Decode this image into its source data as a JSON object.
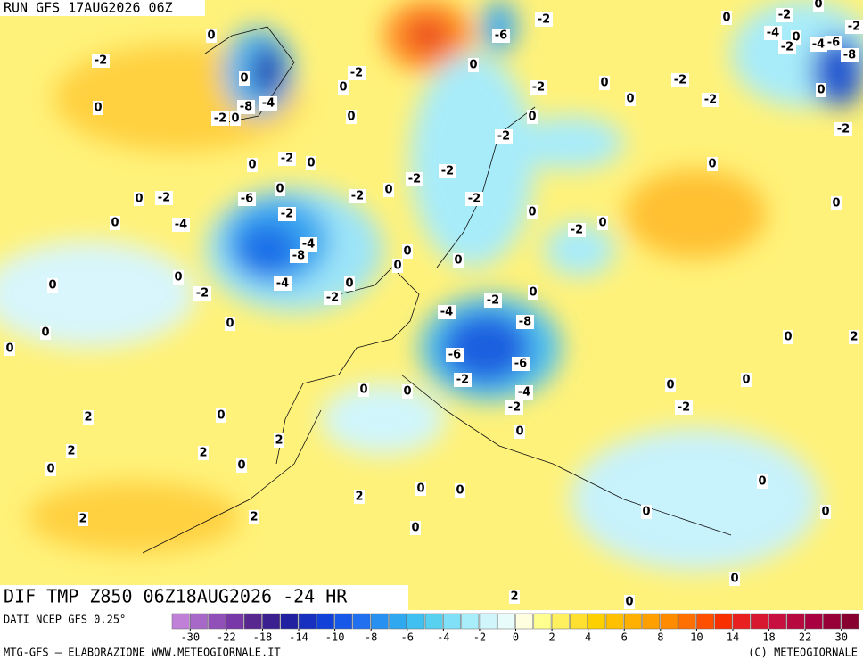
{
  "header": {
    "run": "RUN GFS 17AUG2026 06Z"
  },
  "map": {
    "title": "DIF TMP Z850 06Z18AUG2026 -24 HR",
    "contour_labels": [
      0,
      -2,
      0,
      0,
      -4,
      -8,
      -2,
      0,
      -2,
      0,
      0,
      -6,
      -2,
      0,
      -2,
      0,
      0,
      -2,
      -2,
      0,
      -2,
      -4,
      0,
      -2,
      -4,
      -6,
      -8,
      0,
      0,
      -2,
      -2,
      0,
      -2,
      -2,
      0,
      0,
      0,
      0,
      -2,
      0,
      -4,
      -6,
      -2,
      -2,
      0,
      -2,
      -2,
      -2,
      0,
      -2,
      0,
      0,
      0,
      -4,
      -8,
      -4,
      0,
      -2,
      -2,
      0,
      0,
      0,
      0,
      0,
      0,
      0,
      0,
      -2,
      0,
      -4,
      -8,
      -6,
      -2,
      -6,
      -4,
      -2,
      0,
      0,
      0,
      2,
      2,
      0,
      0,
      2,
      2,
      0,
      0,
      2,
      0,
      0,
      -2,
      0,
      2,
      0,
      0,
      2,
      2,
      0,
      0,
      0,
      0,
      0,
      2
    ]
  },
  "colorbar": {
    "ticks": [
      -30,
      -22,
      -18,
      -14,
      -10,
      -8,
      -6,
      -4,
      -2,
      0,
      2,
      4,
      6,
      8,
      10,
      14,
      18,
      22,
      30
    ],
    "colors": [
      "#c080d8",
      "#a868c8",
      "#9050b8",
      "#7838a8",
      "#582890",
      "#3c2090",
      "#2020a0",
      "#1830c0",
      "#1040d8",
      "#1858e8",
      "#2070f0",
      "#2890f0",
      "#30a8f0",
      "#40c0f0",
      "#58d0f0",
      "#80e0f8",
      "#a8eefa",
      "#d0f6fc",
      "#e8fcfc",
      "#ffffe0",
      "#ffff90",
      "#fff060",
      "#ffe030",
      "#ffd000",
      "#ffc000",
      "#ffb000",
      "#ffa000",
      "#ff8c00",
      "#ff7000",
      "#ff5000",
      "#f83000",
      "#e82020",
      "#d81830",
      "#c81040",
      "#b80840",
      "#a80040",
      "#980038",
      "#880030"
    ]
  },
  "footer": {
    "source": "DATI NCEP GFS 0.25°",
    "credit": "MTG-GFS — ELABORAZIONE WWW.METEOGIORNALE.IT",
    "copyright": "(C) METEOGIORNALE"
  }
}
